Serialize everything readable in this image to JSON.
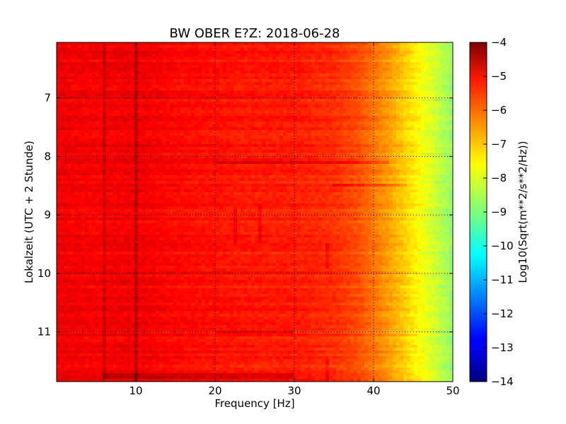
{
  "chart_data": {
    "type": "heatmap",
    "title": "BW OBER E?Z: 2018-06-28",
    "xlabel": "Frequency [Hz]",
    "ylabel": "Lokalzeit (UTC + 2 Stunde)",
    "colorbar_label": "Log10(Sqrt(m**2/s**2/Hz))",
    "colormap": "jet",
    "xlim": [
      0,
      50
    ],
    "ylim": [
      6.05,
      11.85
    ],
    "y_inverted": true,
    "clim": [
      -14,
      -4
    ],
    "grid": true,
    "x_ticks": [
      10,
      20,
      30,
      40,
      50
    ],
    "x_tick_labels": [
      "10",
      "20",
      "30",
      "40",
      "50"
    ],
    "y_ticks": [
      7,
      8,
      9,
      10,
      11
    ],
    "y_tick_labels": [
      "7",
      "8",
      "9",
      "10",
      "11"
    ],
    "colorbar_ticks": [
      -4,
      -5,
      -6,
      -7,
      -8,
      -9,
      -10,
      -11,
      -12,
      -13,
      -14
    ],
    "colorbar_tick_labels": [
      "−4",
      "−5",
      "−6",
      "−7",
      "−8",
      "−9",
      "−10",
      "−11",
      "−12",
      "−13",
      "−14"
    ],
    "spectral_profile": {
      "frequency_hz": [
        0,
        5,
        10,
        15,
        20,
        25,
        30,
        35,
        38,
        40,
        42,
        44,
        46,
        48,
        50
      ],
      "log10_amplitude": [
        -5.1,
        -5.2,
        -5.1,
        -5.3,
        -5.4,
        -5.5,
        -5.5,
        -5.7,
        -6.0,
        -6.4,
        -6.8,
        -7.3,
        -7.8,
        -8.3,
        -8.8
      ]
    },
    "features": [
      {
        "frequency_hz": 6.2,
        "time_from": 6.05,
        "time_to": 11.85
      },
      {
        "frequency_hz": 10.0,
        "time_from": 6.05,
        "time_to": 11.85
      },
      {
        "frequency_hz": 22.5,
        "time_from": 8.9,
        "time_to": 9.5
      },
      {
        "frequency_hz": 25.5,
        "time_from": 8.8,
        "time_to": 9.5
      },
      {
        "frequency_hz": 34.0,
        "time_from": 9.5,
        "time_to": 9.9
      },
      {
        "frequency_hz": 34.0,
        "time_from": 11.45,
        "time_to": 11.85
      },
      {
        "time": 8.1,
        "frequency_from": 20,
        "frequency_to": 42
      },
      {
        "time": 8.5,
        "frequency_from": 35,
        "frequency_to": 44
      },
      {
        "time": 11.0,
        "frequency_from": 20,
        "frequency_to": 30
      },
      {
        "time": 11.75,
        "frequency_from": 6,
        "frequency_to": 30
      }
    ]
  }
}
